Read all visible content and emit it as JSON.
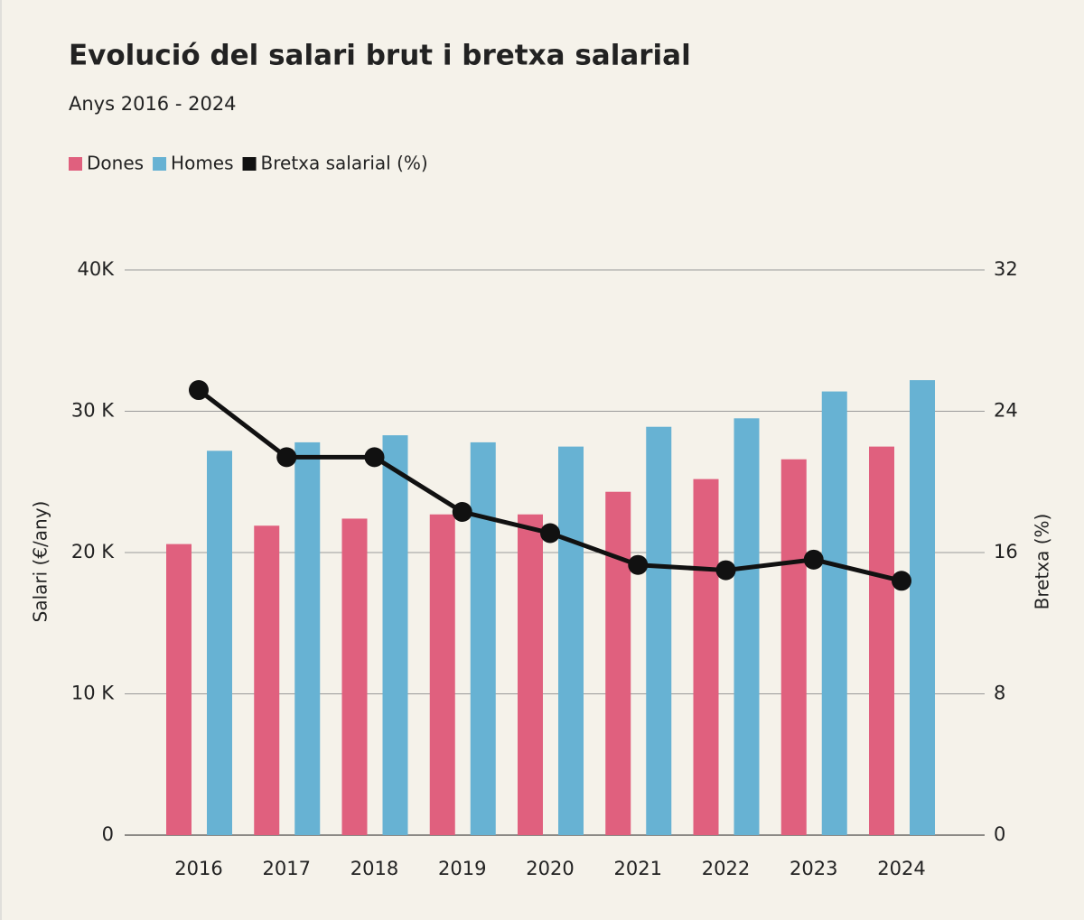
{
  "chart_data": {
    "type": "bar",
    "title": "Evolució del salari brut i bretxa salarial",
    "subtitle": "Anys 2016 - 2024",
    "categories": [
      "2016",
      "2017",
      "2018",
      "2019",
      "2020",
      "2021",
      "2022",
      "2023",
      "2024"
    ],
    "series": [
      {
        "name": "Dones",
        "color": "#e0607e",
        "values": [
          20600,
          21900,
          22400,
          22700,
          22700,
          24300,
          25200,
          26600,
          27500
        ]
      },
      {
        "name": "Homes",
        "color": "#67b2d3",
        "values": [
          27200,
          27800,
          28300,
          27800,
          27500,
          28900,
          29500,
          31400,
          32200
        ]
      },
      {
        "name": "Bretxa salarial (%)",
        "color": "#111111",
        "type": "line",
        "axis": "y2",
        "values": [
          25.2,
          21.4,
          21.4,
          18.3,
          17.1,
          15.3,
          15.0,
          15.6,
          14.4
        ]
      }
    ],
    "ylabel": "Salari (€/any)",
    "y2label": "Bretxa (%)",
    "ylim": [
      0,
      40000
    ],
    "yticks": [
      {
        "value": 0,
        "label": "0"
      },
      {
        "value": 10000,
        "label": "10 K"
      },
      {
        "value": 20000,
        "label": "20 K"
      },
      {
        "value": 30000,
        "label": "30 K"
      },
      {
        "value": 40000,
        "label": "40K"
      }
    ],
    "y2lim": [
      0,
      32
    ],
    "y2ticks": [
      0,
      8,
      16,
      24,
      32
    ],
    "grid": true
  }
}
